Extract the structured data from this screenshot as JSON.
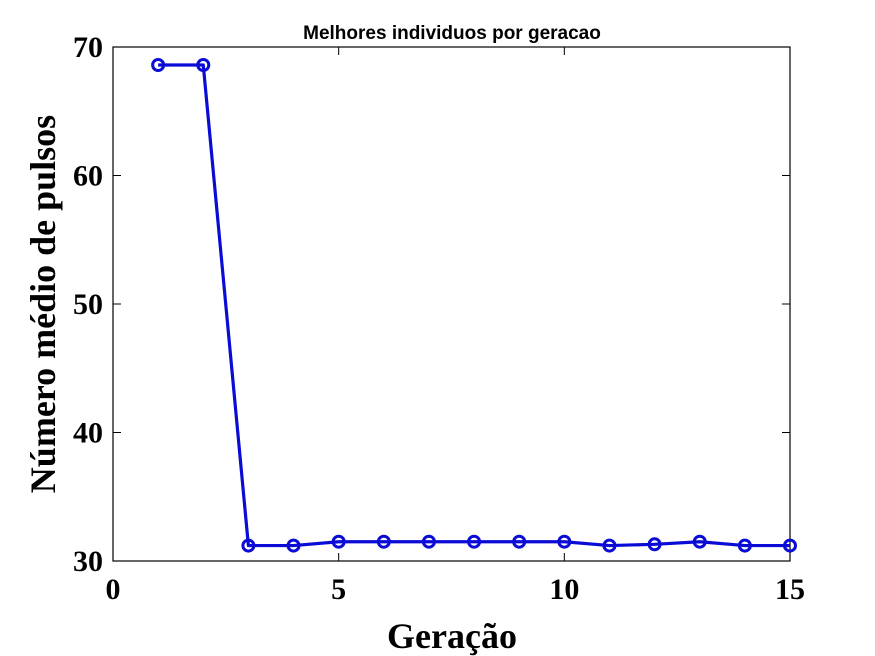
{
  "chart_data": {
    "type": "line",
    "title": "Melhores individuos por geracao",
    "xlabel": "Geração",
    "ylabel": "Número médio de pulsos",
    "xlim": [
      0,
      15
    ],
    "ylim": [
      30,
      70
    ],
    "xticks": [
      "0",
      "5",
      "10",
      "15"
    ],
    "yticks": [
      "30",
      "40",
      "50",
      "60",
      "70"
    ],
    "grid": false,
    "legend": "none",
    "series": [
      {
        "color": "#0b0bd6",
        "marker": "circle",
        "x": [
          1,
          2,
          3,
          4,
          5,
          6,
          7,
          8,
          9,
          10,
          11,
          12,
          13,
          14,
          15
        ],
        "y": [
          68.6,
          68.6,
          31.2,
          31.2,
          31.5,
          31.5,
          31.5,
          31.5,
          31.5,
          31.5,
          31.2,
          31.3,
          31.5,
          31.2,
          31.2
        ]
      }
    ]
  }
}
